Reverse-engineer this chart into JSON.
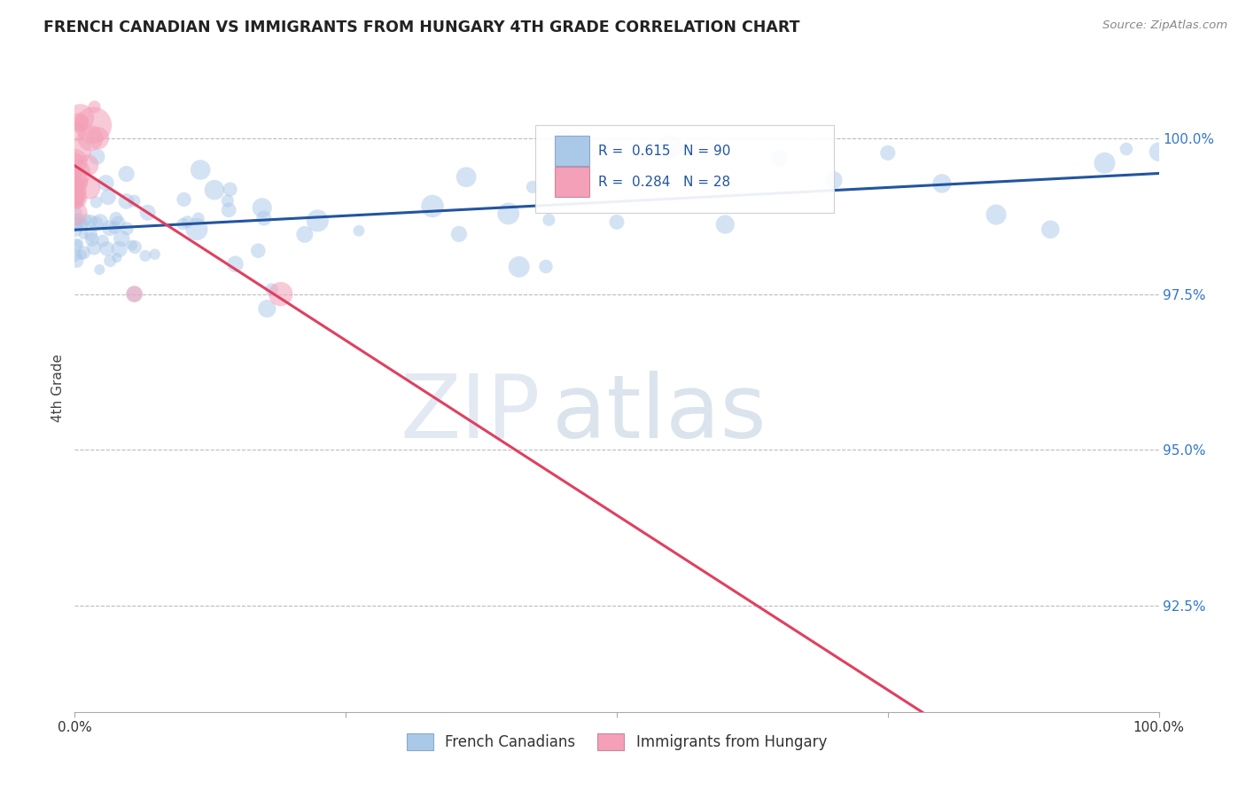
{
  "title": "FRENCH CANADIAN VS IMMIGRANTS FROM HUNGARY 4TH GRADE CORRELATION CHART",
  "source": "Source: ZipAtlas.com",
  "ylabel": "4th Grade",
  "legend_blue_label": "French Canadians",
  "legend_pink_label": "Immigrants from Hungary",
  "R_blue": 0.615,
  "N_blue": 90,
  "R_pink": 0.284,
  "N_pink": 28,
  "blue_color": "#aac8e8",
  "pink_color": "#f4a0b8",
  "blue_line_color": "#2255a0",
  "pink_line_color": "#e04060",
  "ytick_labels": [
    "100.0%",
    "97.5%",
    "95.0%",
    "92.5%"
  ],
  "ytick_values": [
    1.0,
    0.975,
    0.95,
    0.925
  ],
  "xmin": 0.0,
  "xmax": 1.0,
  "ymin": 0.908,
  "ymax": 1.012,
  "watermark_zip": "ZIP",
  "watermark_atlas": "atlas",
  "background_color": "#ffffff"
}
